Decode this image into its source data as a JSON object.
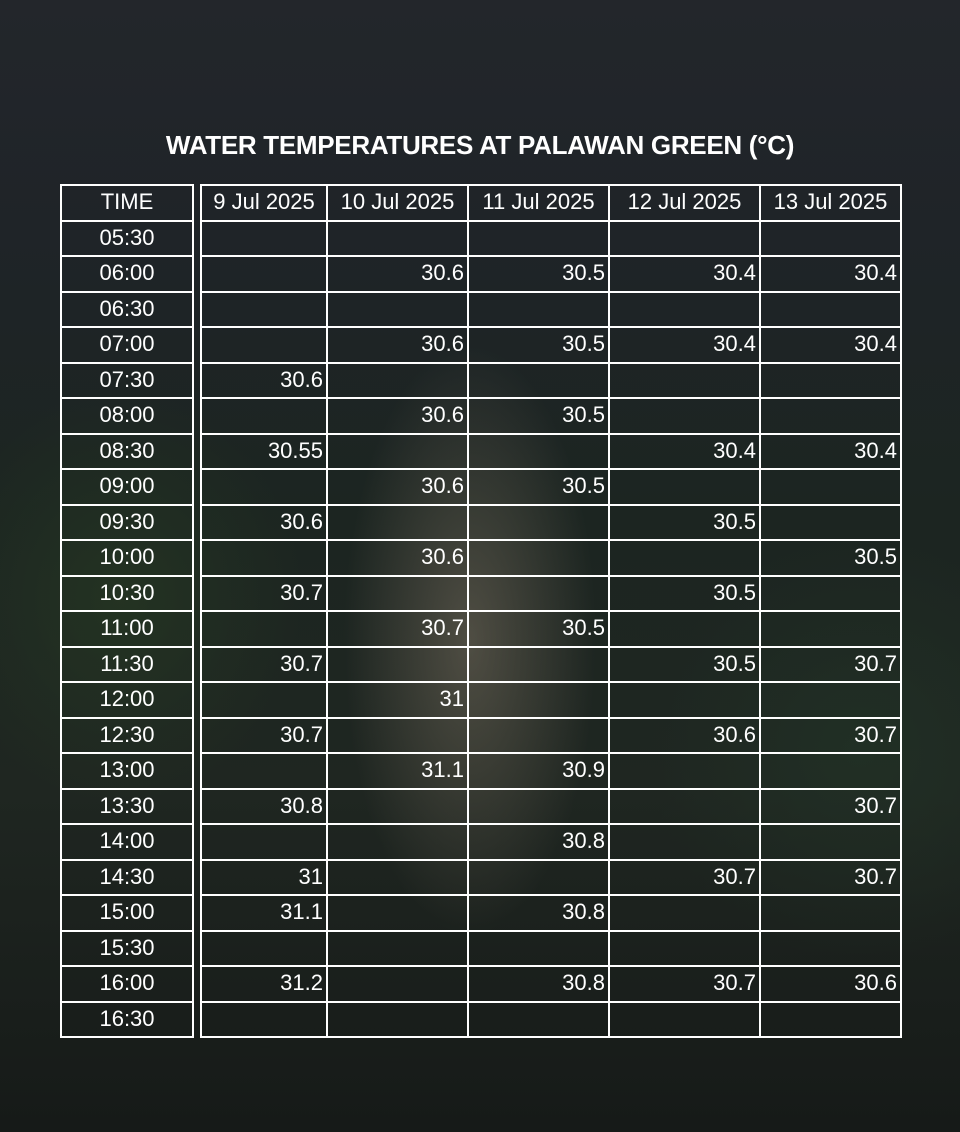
{
  "title": "WATER TEMPERATURES AT PALAWAN GREEN (°C)",
  "table": {
    "columns": [
      "TIME",
      "9 Jul 2025",
      "10 Jul 2025",
      "11 Jul 2025",
      "12 Jul 2025",
      "13 Jul 2025"
    ],
    "rows": [
      [
        "05:30",
        null,
        null,
        null,
        null,
        null
      ],
      [
        "06:00",
        null,
        30.6,
        30.5,
        30.4,
        30.4
      ],
      [
        "06:30",
        null,
        null,
        null,
        null,
        null
      ],
      [
        "07:00",
        null,
        30.6,
        30.5,
        30.4,
        30.4
      ],
      [
        "07:30",
        30.6,
        null,
        null,
        null,
        null
      ],
      [
        "08:00",
        null,
        30.6,
        30.5,
        null,
        null
      ],
      [
        "08:30",
        30.55,
        null,
        null,
        30.4,
        30.4
      ],
      [
        "09:00",
        null,
        30.6,
        30.5,
        null,
        null
      ],
      [
        "09:30",
        30.6,
        null,
        null,
        30.5,
        null
      ],
      [
        "10:00",
        null,
        30.6,
        null,
        null,
        30.5
      ],
      [
        "10:30",
        30.7,
        null,
        null,
        30.5,
        null
      ],
      [
        "11:00",
        null,
        30.7,
        30.5,
        null,
        null
      ],
      [
        "11:30",
        30.7,
        null,
        null,
        30.5,
        30.7
      ],
      [
        "12:00",
        null,
        31,
        null,
        null,
        null
      ],
      [
        "12:30",
        30.7,
        null,
        null,
        30.6,
        30.7
      ],
      [
        "13:00",
        null,
        31.1,
        30.9,
        null,
        null
      ],
      [
        "13:30",
        30.8,
        null,
        null,
        null,
        30.7
      ],
      [
        "14:00",
        null,
        null,
        30.8,
        null,
        null
      ],
      [
        "14:30",
        31,
        null,
        null,
        30.7,
        30.7
      ],
      [
        "15:00",
        31.1,
        null,
        30.8,
        null,
        null
      ],
      [
        "15:30",
        null,
        null,
        null,
        null,
        null
      ],
      [
        "16:00",
        31.2,
        null,
        30.8,
        30.7,
        30.6
      ],
      [
        "16:30",
        null,
        null,
        null,
        null,
        null
      ]
    ]
  }
}
